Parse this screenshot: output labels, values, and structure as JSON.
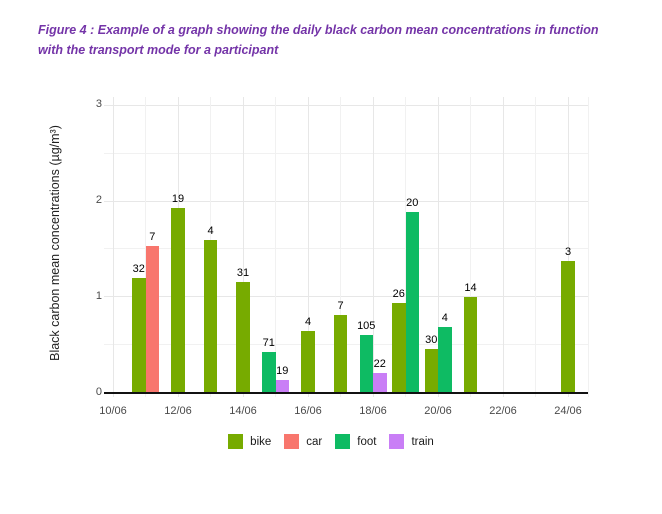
{
  "caption": "Figure 4 : Example of a graph showing the daily black carbon mean concentrations in function with the transport mode for a participant",
  "chart_data": {
    "type": "bar",
    "title": "",
    "xlabel": "",
    "ylabel": "Black carbon mean concentrations (µg/m³)",
    "ylim": [
      0,
      3
    ],
    "y_ticks": [
      0,
      1,
      2,
      3
    ],
    "y_minor_gridlines": [
      0.5,
      1.5,
      2.5
    ],
    "x_tick_labels": [
      "10/06",
      "12/06",
      "14/06",
      "16/06",
      "18/06",
      "20/06",
      "22/06",
      "24/06"
    ],
    "x_day_range": [
      10,
      24
    ],
    "grid": true,
    "legend_position": "bottom",
    "legend": [
      {
        "name": "bike",
        "color": "#77AB00"
      },
      {
        "name": "car",
        "color": "#F8766D"
      },
      {
        "name": "foot",
        "color": "#0EBB63"
      },
      {
        "name": "train",
        "color": "#C97EF6"
      }
    ],
    "bars": [
      {
        "date": "11/06",
        "day": 11,
        "mode": "bike",
        "value": 1.2,
        "label": "32"
      },
      {
        "date": "11/06",
        "day": 11,
        "mode": "car",
        "value": 1.53,
        "label": "7"
      },
      {
        "date": "12/06",
        "day": 12,
        "mode": "bike",
        "value": 1.93,
        "label": "19"
      },
      {
        "date": "13/06",
        "day": 13,
        "mode": "bike",
        "value": 1.59,
        "label": "4"
      },
      {
        "date": "14/06",
        "day": 14,
        "mode": "bike",
        "value": 1.15,
        "label": "31"
      },
      {
        "date": "15/06",
        "day": 15,
        "mode": "foot",
        "value": 0.42,
        "label": "71"
      },
      {
        "date": "15/06",
        "day": 15,
        "mode": "train",
        "value": 0.13,
        "label": "19"
      },
      {
        "date": "16/06",
        "day": 16,
        "mode": "bike",
        "value": 0.64,
        "label": "4"
      },
      {
        "date": "17/06",
        "day": 17,
        "mode": "bike",
        "value": 0.81,
        "label": "7"
      },
      {
        "date": "18/06",
        "day": 18,
        "mode": "foot",
        "value": 0.6,
        "label": "105"
      },
      {
        "date": "18/06",
        "day": 18,
        "mode": "train",
        "value": 0.2,
        "label": "22"
      },
      {
        "date": "19/06",
        "day": 19,
        "mode": "bike",
        "value": 0.94,
        "label": "26"
      },
      {
        "date": "19/06",
        "day": 19,
        "mode": "foot",
        "value": 1.89,
        "label": "20"
      },
      {
        "date": "20/06",
        "day": 20,
        "mode": "bike",
        "value": 0.45,
        "label": "30"
      },
      {
        "date": "20/06",
        "day": 20,
        "mode": "foot",
        "value": 0.68,
        "label": "4"
      },
      {
        "date": "21/06",
        "day": 21,
        "mode": "bike",
        "value": 1.0,
        "label": "14"
      },
      {
        "date": "24/06",
        "day": 24,
        "mode": "bike",
        "value": 1.37,
        "label": "3"
      }
    ],
    "colors": {
      "caption_text": "#7434A8",
      "axis_line": "#111111",
      "tick_text": "#4a4a4a",
      "major_grid": "#e7e7e7",
      "minor_grid": "#f1f1f1",
      "background": "#ffffff"
    }
  }
}
